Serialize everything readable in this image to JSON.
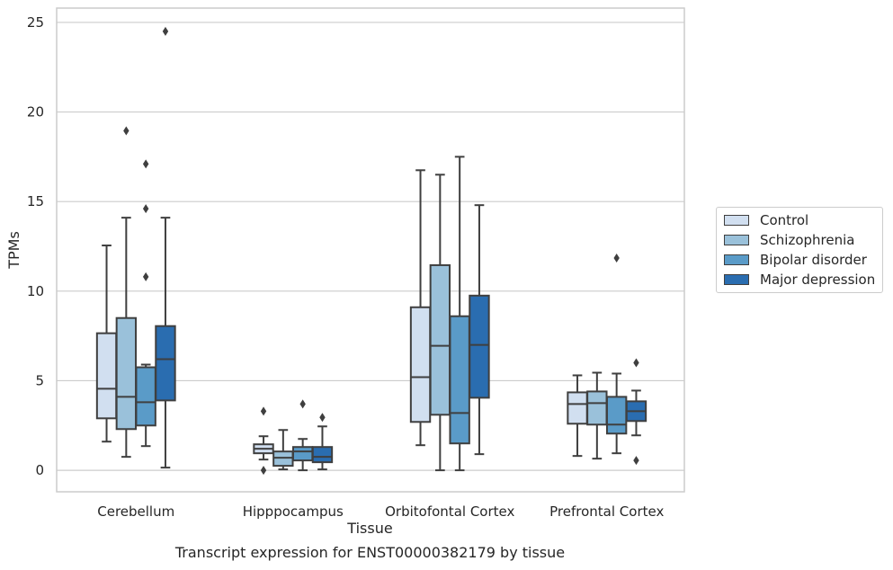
{
  "chart_data": {
    "type": "box",
    "title": "Transcript expression for ENST00000382179 by tissue",
    "xlabel": "Tissue",
    "ylabel": "TPMs",
    "ylim": [
      -1.2,
      25.8
    ],
    "yticks": [
      0,
      5,
      10,
      15,
      20,
      25
    ],
    "grid": true,
    "legend_position": "right",
    "categories": [
      "Cerebellum",
      "Hipppocampus",
      "Orbitofontal Cortex",
      "Prefrontal Cortex"
    ],
    "series": [
      {
        "name": "Control",
        "color": "#d1dff0",
        "boxes": [
          {
            "whislo": 1.6,
            "q1": 2.9,
            "med": 4.55,
            "q3": 7.65,
            "whishi": 12.55,
            "fliers": []
          },
          {
            "whislo": 0.6,
            "q1": 0.95,
            "med": 1.2,
            "q3": 1.45,
            "whishi": 1.9,
            "fliers": [
              3.3,
              0.0
            ]
          },
          {
            "whislo": 1.4,
            "q1": 2.7,
            "med": 5.2,
            "q3": 9.1,
            "whishi": 16.75,
            "fliers": []
          },
          {
            "whislo": 0.8,
            "q1": 2.6,
            "med": 3.7,
            "q3": 4.35,
            "whishi": 5.3,
            "fliers": []
          }
        ]
      },
      {
        "name": "Schizophrenia",
        "color": "#9ac1da",
        "boxes": [
          {
            "whislo": 0.75,
            "q1": 2.3,
            "med": 4.1,
            "q3": 8.5,
            "whishi": 14.1,
            "fliers": [
              18.95
            ]
          },
          {
            "whislo": 0.05,
            "q1": 0.25,
            "med": 0.7,
            "q3": 1.05,
            "whishi": 2.25,
            "fliers": []
          },
          {
            "whislo": 0.0,
            "q1": 3.1,
            "med": 6.95,
            "q3": 11.45,
            "whishi": 16.5,
            "fliers": []
          },
          {
            "whislo": 0.65,
            "q1": 2.55,
            "med": 3.75,
            "q3": 4.4,
            "whishi": 5.45,
            "fliers": []
          }
        ]
      },
      {
        "name": "Bipolar disorder",
        "color": "#5a9bc8",
        "boxes": [
          {
            "whislo": 1.35,
            "q1": 2.5,
            "med": 3.8,
            "q3": 5.75,
            "whishi": 5.9,
            "fliers": [
              17.1,
              14.6,
              10.8
            ]
          },
          {
            "whislo": 0.0,
            "q1": 0.55,
            "med": 1.05,
            "q3": 1.3,
            "whishi": 1.75,
            "fliers": [
              3.7
            ]
          },
          {
            "whislo": 0.0,
            "q1": 1.5,
            "med": 3.2,
            "q3": 8.6,
            "whishi": 17.5,
            "fliers": []
          },
          {
            "whislo": 0.95,
            "q1": 2.05,
            "med": 2.55,
            "q3": 4.1,
            "whishi": 5.4,
            "fliers": [
              11.85
            ]
          }
        ]
      },
      {
        "name": "Major depression",
        "color": "#2a6db0",
        "boxes": [
          {
            "whislo": 0.15,
            "q1": 3.9,
            "med": 6.2,
            "q3": 8.05,
            "whishi": 14.1,
            "fliers": [
              24.5
            ]
          },
          {
            "whislo": 0.05,
            "q1": 0.45,
            "med": 0.75,
            "q3": 1.3,
            "whishi": 2.45,
            "fliers": [
              2.95
            ]
          },
          {
            "whislo": 0.9,
            "q1": 4.05,
            "med": 7.0,
            "q3": 9.75,
            "whishi": 14.8,
            "fliers": []
          },
          {
            "whislo": 1.95,
            "q1": 2.75,
            "med": 3.3,
            "q3": 3.85,
            "whishi": 4.45,
            "fliers": [
              6.0,
              0.55
            ]
          }
        ]
      }
    ]
  }
}
